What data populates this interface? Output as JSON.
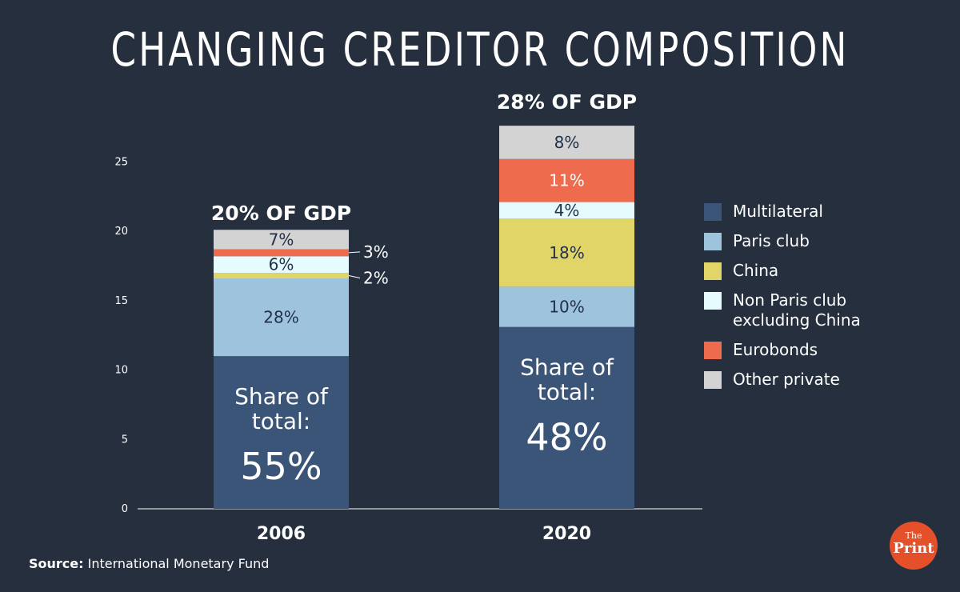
{
  "title": "CHANGING CREDITOR COMPOSITION",
  "source": {
    "label": "Source:",
    "text": "International Monetary Fund"
  },
  "logo": {
    "line1": "The",
    "line2": "Print"
  },
  "colors": {
    "Multilateral": "#3b5578",
    "Paris club": "#9ec3dc",
    "China": "#e1d568",
    "Non Paris club excluding China": "#e5fbfd",
    "Eurobonds": "#ee6b4d",
    "Other private": "#d3d3d3"
  },
  "legend": [
    {
      "name": "Multilateral",
      "label": "Multilateral"
    },
    {
      "name": "Paris club",
      "label": "Paris club"
    },
    {
      "name": "China",
      "label": "China"
    },
    {
      "name": "Non Paris club excluding China",
      "label": "Non Paris club\nexcluding China"
    },
    {
      "name": "Eurobonds",
      "label": "Eurobonds"
    },
    {
      "name": "Other private",
      "label": "Other private"
    }
  ],
  "chart_data": {
    "type": "bar",
    "stacked": true,
    "title": "CHANGING CREDITOR COMPOSITION",
    "categories": [
      "2006",
      "2020"
    ],
    "ylim": [
      0,
      28
    ],
    "yticks": [
      0,
      5,
      10,
      15,
      20,
      25
    ],
    "grid": false,
    "legend_position": "right",
    "totals": [
      "20% OF GDP",
      "28% OF GDP"
    ],
    "totals_value": [
      20,
      28
    ],
    "share_of_total": {
      "label_line1": "Share of",
      "label_line2": "total:",
      "values": [
        "55%",
        "48%"
      ]
    },
    "series": [
      {
        "name": "Multilateral",
        "values": [
          11,
          13.1
        ],
        "labels": [
          "",
          ""
        ]
      },
      {
        "name": "Paris club",
        "values": [
          5.6,
          2.9
        ],
        "labels": [
          "28%",
          "10%"
        ]
      },
      {
        "name": "China",
        "values": [
          0.4,
          4.9
        ],
        "labels": [
          "2%",
          "18%"
        ]
      },
      {
        "name": "Non Paris club excluding China",
        "values": [
          1.2,
          1.2
        ],
        "labels": [
          "6%",
          "4%"
        ]
      },
      {
        "name": "Eurobonds",
        "values": [
          0.5,
          3.1
        ],
        "labels": [
          "3%",
          "11%"
        ]
      },
      {
        "name": "Other private",
        "values": [
          1.4,
          2.4
        ],
        "labels": [
          "7%",
          "8%"
        ]
      }
    ]
  }
}
